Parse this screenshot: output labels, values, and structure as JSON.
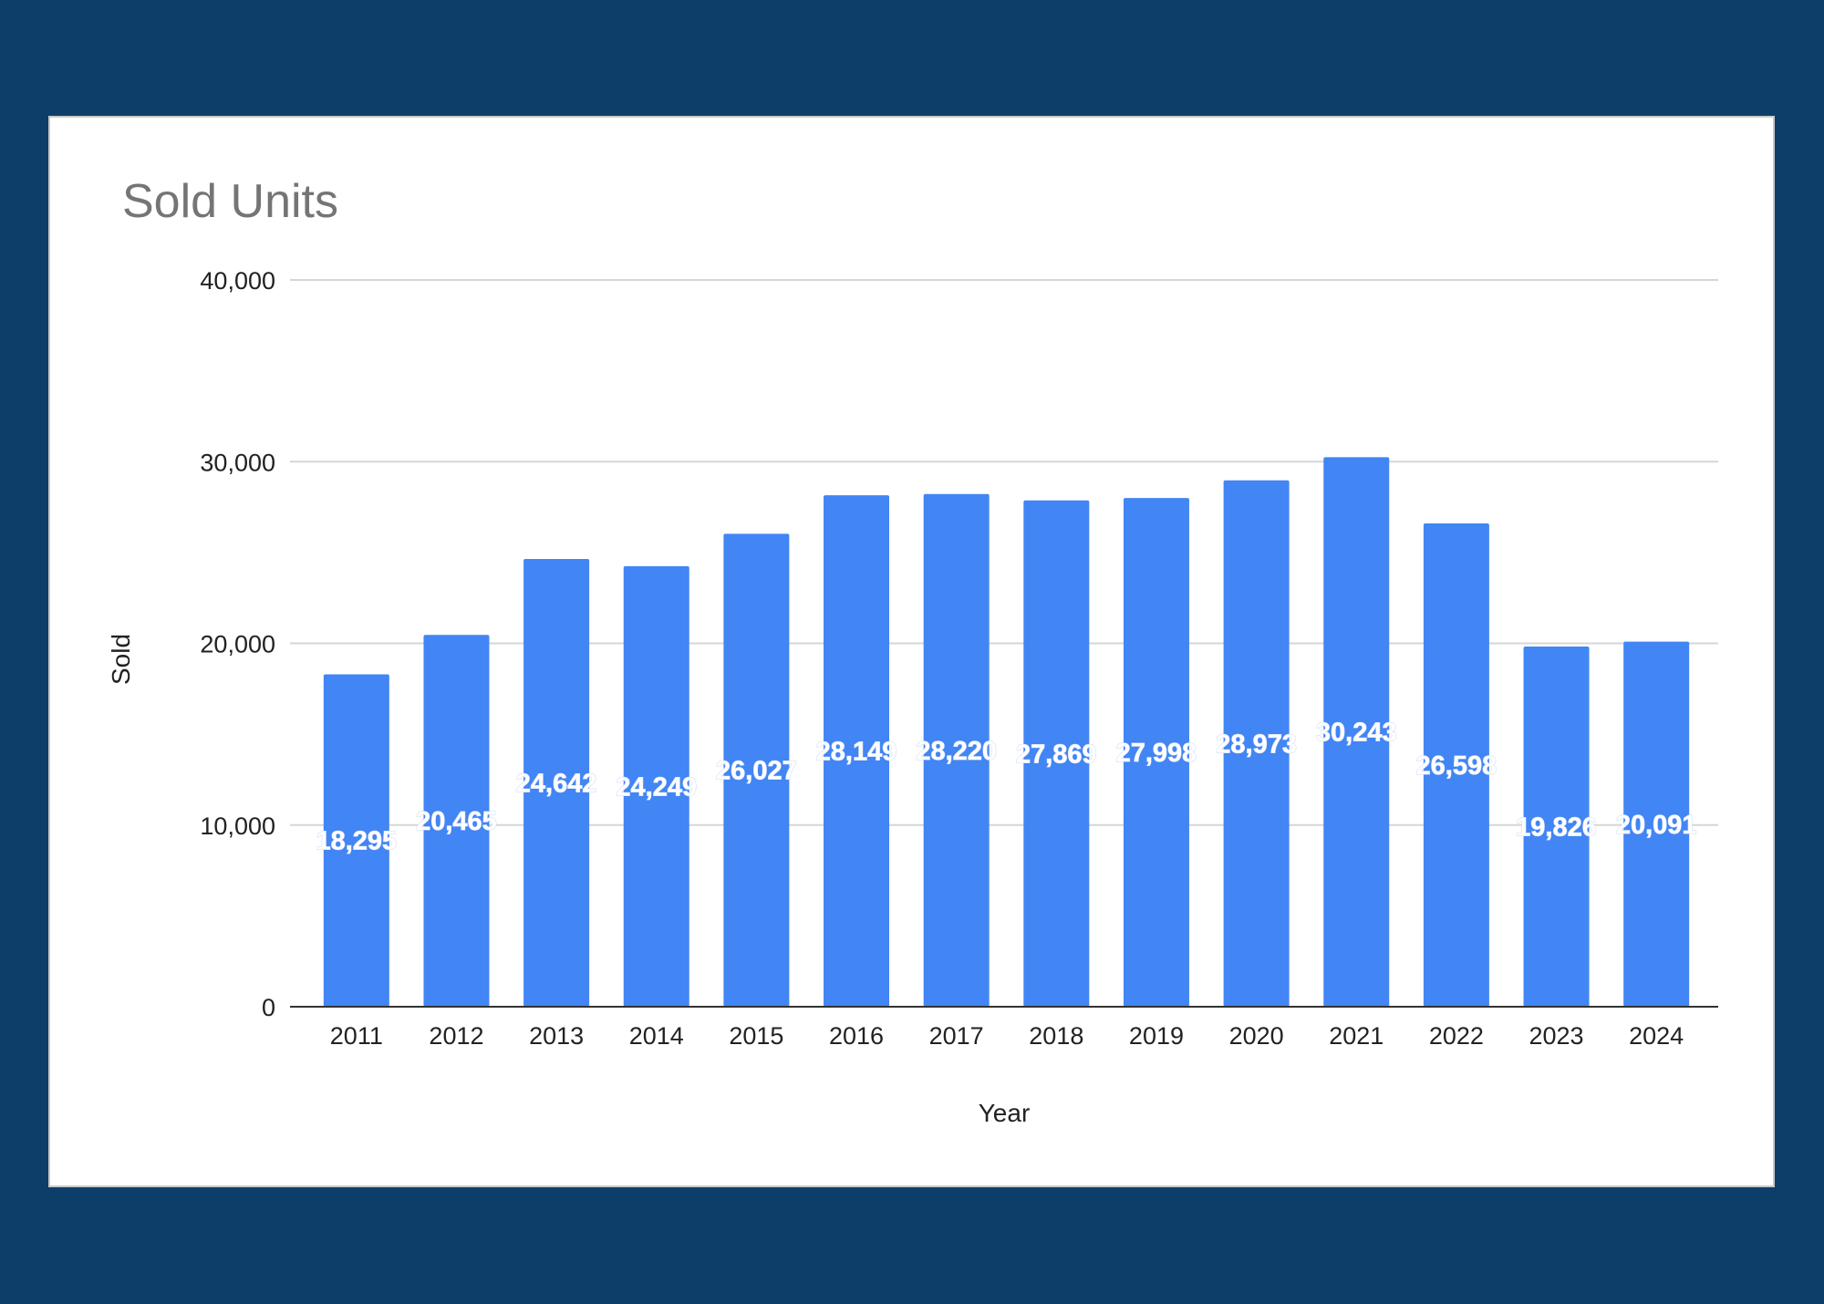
{
  "chart_data": {
    "type": "bar",
    "title": "Sold Units",
    "xlabel": "Year",
    "ylabel": "Sold",
    "ylim": [
      0,
      40000
    ],
    "yticks": [
      "0",
      "10,000",
      "20,000",
      "30,000",
      "40,000"
    ],
    "grid": true,
    "legend": "none",
    "bar_color": "#4285f4",
    "categories": [
      "2011",
      "2012",
      "2013",
      "2014",
      "2015",
      "2016",
      "2017",
      "2018",
      "2019",
      "2020",
      "2021",
      "2022",
      "2023",
      "2024"
    ],
    "values": [
      18295,
      20465,
      24642,
      24249,
      26027,
      28149,
      28220,
      27869,
      27998,
      28973,
      30243,
      26598,
      19826,
      20091
    ],
    "value_labels": [
      "18,295",
      "20,465",
      "24,642",
      "24,249",
      "26,027",
      "28,149",
      "28,220",
      "27,869",
      "27,998",
      "28,973",
      "30,243",
      "26,598",
      "19,826",
      "20,091"
    ]
  }
}
